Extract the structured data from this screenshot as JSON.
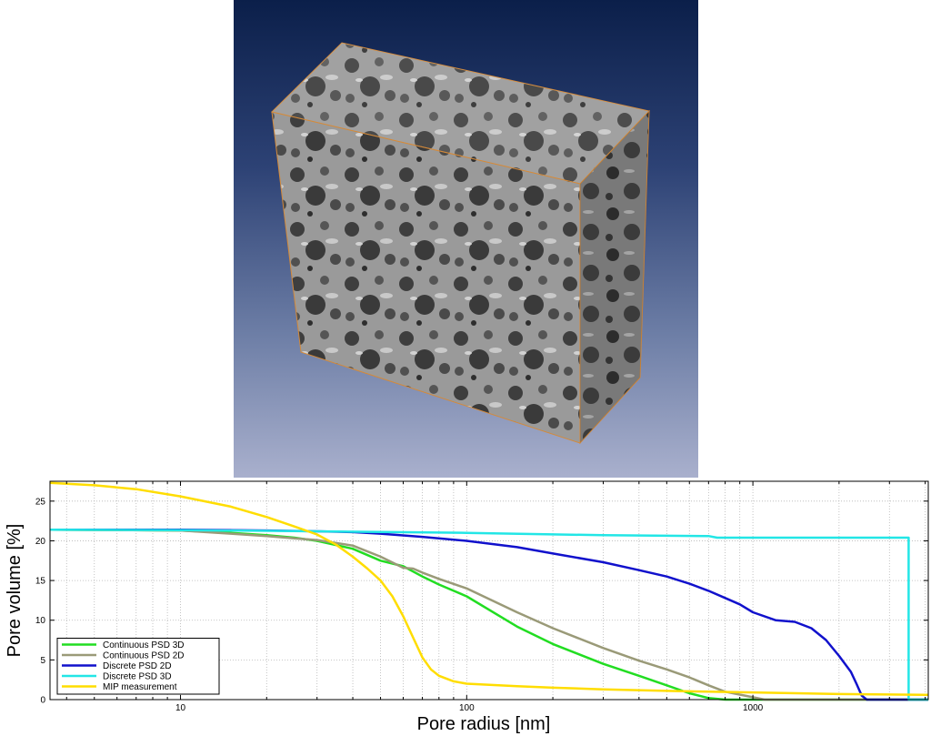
{
  "volume_image": {
    "description_hidden": ""
  },
  "chart_data": {
    "type": "line",
    "xlabel": "Pore radius [nm]",
    "ylabel": "Pore volume [%]",
    "xscale": "log",
    "xlim": [
      3.5,
      4100
    ],
    "ylim": [
      0,
      27.5
    ],
    "xticks": [
      10,
      100,
      1000
    ],
    "xtick_labels": [
      "10",
      "100",
      "1000"
    ],
    "yticks": [
      0,
      5,
      10,
      15,
      20,
      25
    ],
    "ytick_labels": [
      "0",
      "5",
      "10",
      "15",
      "20",
      "25"
    ],
    "grid": true,
    "legend_position": "bottom-left",
    "series": [
      {
        "name": "Continuous PSD 3D",
        "color": "#22dd22",
        "x": [
          3.5,
          10,
          15,
          20,
          25,
          30,
          40,
          50,
          60,
          70,
          80,
          100,
          150,
          200,
          300,
          400,
          500,
          600,
          700,
          800,
          4100
        ],
        "y": [
          21.4,
          21.3,
          21.0,
          20.7,
          20.4,
          20.0,
          19.0,
          17.5,
          16.8,
          15.5,
          14.5,
          13.0,
          9.2,
          7.0,
          4.5,
          3.0,
          1.8,
          0.8,
          0.2,
          0.0,
          0.0
        ]
      },
      {
        "name": "Continuous PSD 2D",
        "color": "#9a9a78",
        "x": [
          3.5,
          10,
          15,
          20,
          25,
          30,
          40,
          50,
          60,
          65,
          70,
          80,
          100,
          150,
          200,
          300,
          400,
          500,
          600,
          700,
          800,
          1000,
          1100,
          4100
        ],
        "y": [
          21.4,
          21.3,
          20.9,
          20.6,
          20.3,
          20.1,
          19.4,
          18.0,
          16.6,
          16.5,
          16.0,
          15.2,
          14.0,
          11.0,
          9.0,
          6.5,
          4.9,
          3.8,
          2.8,
          1.8,
          1.0,
          0.3,
          0.0,
          0.0
        ]
      },
      {
        "name": "Discrete PSD 2D",
        "color": "#1111cc",
        "x": [
          3.5,
          10,
          20,
          30,
          40,
          50,
          70,
          100,
          150,
          200,
          300,
          400,
          500,
          600,
          700,
          800,
          900,
          1000,
          1200,
          1400,
          1600,
          1800,
          2000,
          2200,
          2300,
          2400,
          2500,
          4100
        ],
        "y": [
          21.4,
          21.4,
          21.3,
          21.2,
          21.1,
          20.9,
          20.5,
          20.0,
          19.2,
          18.4,
          17.3,
          16.3,
          15.5,
          14.6,
          13.7,
          12.8,
          12.0,
          11.0,
          10.0,
          9.8,
          9.0,
          7.5,
          5.5,
          3.5,
          2.0,
          0.5,
          0.0,
          0.0
        ]
      },
      {
        "name": "Discrete PSD 3D",
        "color": "#22e6e6",
        "x": [
          3.5,
          10,
          30,
          100,
          300,
          700,
          750,
          3500,
          3500,
          4100
        ],
        "y": [
          21.4,
          21.35,
          21.2,
          21.0,
          20.7,
          20.6,
          20.4,
          20.4,
          0.0,
          0.0
        ]
      },
      {
        "name": "MIP measurement",
        "color": "#ffdd00",
        "x": [
          3.5,
          5,
          7,
          10,
          15,
          20,
          25,
          30,
          35,
          40,
          45,
          50,
          55,
          60,
          65,
          70,
          75,
          80,
          90,
          100,
          150,
          200,
          300,
          500,
          700,
          1000,
          2000,
          4100
        ],
        "y": [
          27.3,
          27.0,
          26.5,
          25.6,
          24.3,
          23.0,
          21.8,
          20.8,
          19.5,
          18.0,
          16.5,
          15.0,
          13.0,
          10.5,
          7.8,
          5.3,
          3.8,
          3.0,
          2.3,
          2.0,
          1.7,
          1.5,
          1.3,
          1.1,
          1.0,
          0.9,
          0.7,
          0.6
        ]
      }
    ]
  }
}
